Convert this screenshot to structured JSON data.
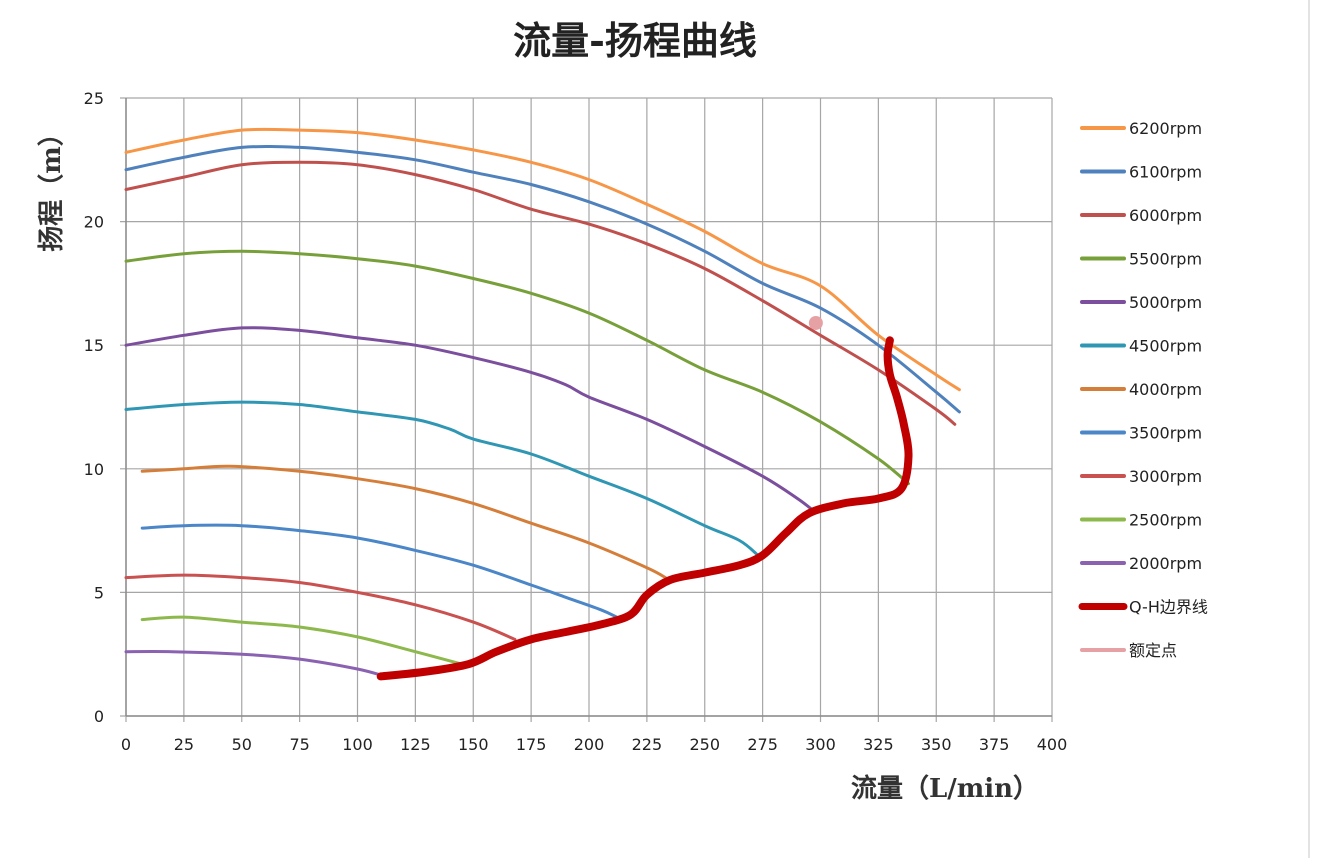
{
  "chart_data": {
    "type": "line",
    "title": "流量-扬程曲线",
    "xlabel": "流量（L/min）",
    "ylabel": "扬程（m）",
    "xlim": [
      0,
      400
    ],
    "ylim": [
      0,
      25
    ],
    "x_ticks": [
      "0",
      "25",
      "50",
      "75",
      "100",
      "125",
      "150",
      "175",
      "200",
      "225",
      "250",
      "275",
      "300",
      "325",
      "350",
      "375",
      "400"
    ],
    "y_ticks": [
      "0",
      "5",
      "10",
      "15",
      "20",
      "25"
    ],
    "grid": true,
    "legend_position": "right",
    "series": [
      {
        "name": "6200rpm",
        "color": "#F79646",
        "width": 3,
        "points": [
          [
            0,
            22.8
          ],
          [
            25,
            23.3
          ],
          [
            50,
            23.7
          ],
          [
            75,
            23.7
          ],
          [
            100,
            23.6
          ],
          [
            125,
            23.3
          ],
          [
            150,
            22.9
          ],
          [
            175,
            22.4
          ],
          [
            200,
            21.7
          ],
          [
            225,
            20.7
          ],
          [
            250,
            19.6
          ],
          [
            275,
            18.3
          ],
          [
            300,
            17.4
          ],
          [
            325,
            15.4
          ],
          [
            350,
            13.8
          ],
          [
            360,
            13.2
          ]
        ]
      },
      {
        "name": "6100rpm",
        "color": "#4F81BD",
        "width": 3,
        "points": [
          [
            0,
            22.1
          ],
          [
            25,
            22.6
          ],
          [
            50,
            23.0
          ],
          [
            75,
            23.0
          ],
          [
            100,
            22.8
          ],
          [
            125,
            22.5
          ],
          [
            150,
            22.0
          ],
          [
            175,
            21.5
          ],
          [
            200,
            20.8
          ],
          [
            225,
            19.9
          ],
          [
            250,
            18.8
          ],
          [
            275,
            17.5
          ],
          [
            300,
            16.5
          ],
          [
            325,
            15.0
          ],
          [
            350,
            13.1
          ],
          [
            360,
            12.3
          ]
        ]
      },
      {
        "name": "6000rpm",
        "color": "#C0504D",
        "width": 3,
        "points": [
          [
            0,
            21.3
          ],
          [
            25,
            21.8
          ],
          [
            50,
            22.3
          ],
          [
            75,
            22.4
          ],
          [
            100,
            22.3
          ],
          [
            125,
            21.9
          ],
          [
            150,
            21.3
          ],
          [
            175,
            20.5
          ],
          [
            200,
            19.9
          ],
          [
            225,
            19.1
          ],
          [
            250,
            18.1
          ],
          [
            275,
            16.8
          ],
          [
            300,
            15.4
          ],
          [
            325,
            14.0
          ],
          [
            350,
            12.4
          ],
          [
            358,
            11.8
          ]
        ]
      },
      {
        "name": "5500rpm",
        "color": "#77A03A",
        "width": 3,
        "points": [
          [
            0,
            18.4
          ],
          [
            25,
            18.7
          ],
          [
            50,
            18.8
          ],
          [
            75,
            18.7
          ],
          [
            100,
            18.5
          ],
          [
            125,
            18.2
          ],
          [
            150,
            17.7
          ],
          [
            175,
            17.1
          ],
          [
            200,
            16.3
          ],
          [
            225,
            15.2
          ],
          [
            250,
            14.0
          ],
          [
            275,
            13.1
          ],
          [
            300,
            11.9
          ],
          [
            325,
            10.4
          ],
          [
            338,
            9.4
          ]
        ]
      },
      {
        "name": "5000rpm",
        "color": "#7B4F9D",
        "width": 3,
        "points": [
          [
            0,
            15.0
          ],
          [
            25,
            15.4
          ],
          [
            50,
            15.7
          ],
          [
            75,
            15.6
          ],
          [
            100,
            15.3
          ],
          [
            125,
            15.0
          ],
          [
            150,
            14.5
          ],
          [
            175,
            13.9
          ],
          [
            190,
            13.4
          ],
          [
            200,
            12.9
          ],
          [
            225,
            12.0
          ],
          [
            250,
            10.9
          ],
          [
            275,
            9.7
          ],
          [
            290,
            8.8
          ],
          [
            297,
            8.3
          ]
        ]
      },
      {
        "name": "4500rpm",
        "color": "#2F97B4",
        "width": 3,
        "points": [
          [
            0,
            12.4
          ],
          [
            25,
            12.6
          ],
          [
            50,
            12.7
          ],
          [
            75,
            12.6
          ],
          [
            100,
            12.3
          ],
          [
            125,
            12.0
          ],
          [
            140,
            11.6
          ],
          [
            150,
            11.2
          ],
          [
            175,
            10.6
          ],
          [
            200,
            9.7
          ],
          [
            225,
            8.8
          ],
          [
            250,
            7.7
          ],
          [
            265,
            7.1
          ],
          [
            273,
            6.5
          ]
        ]
      },
      {
        "name": "4000rpm",
        "color": "#D57E3A",
        "width": 3,
        "points": [
          [
            7,
            9.9
          ],
          [
            25,
            10.0
          ],
          [
            45,
            10.1
          ],
          [
            75,
            9.9
          ],
          [
            100,
            9.6
          ],
          [
            125,
            9.2
          ],
          [
            150,
            8.6
          ],
          [
            175,
            7.8
          ],
          [
            200,
            7.0
          ],
          [
            225,
            6.0
          ],
          [
            233,
            5.6
          ]
        ]
      },
      {
        "name": "3500rpm",
        "color": "#4A86C8",
        "width": 3,
        "points": [
          [
            7,
            7.6
          ],
          [
            25,
            7.7
          ],
          [
            50,
            7.7
          ],
          [
            75,
            7.5
          ],
          [
            100,
            7.2
          ],
          [
            125,
            6.7
          ],
          [
            150,
            6.1
          ],
          [
            175,
            5.3
          ],
          [
            190,
            4.8
          ],
          [
            205,
            4.3
          ],
          [
            212,
            4.0
          ]
        ]
      },
      {
        "name": "3000rpm",
        "color": "#C95150",
        "width": 3,
        "points": [
          [
            0,
            5.6
          ],
          [
            25,
            5.7
          ],
          [
            50,
            5.6
          ],
          [
            75,
            5.4
          ],
          [
            100,
            5.0
          ],
          [
            125,
            4.5
          ],
          [
            150,
            3.8
          ],
          [
            168,
            3.1
          ]
        ]
      },
      {
        "name": "2500rpm",
        "color": "#8CB84C",
        "width": 3,
        "points": [
          [
            7,
            3.9
          ],
          [
            25,
            4.0
          ],
          [
            50,
            3.8
          ],
          [
            75,
            3.6
          ],
          [
            100,
            3.2
          ],
          [
            125,
            2.6
          ],
          [
            145,
            2.1
          ]
        ]
      },
      {
        "name": "2000rpm",
        "color": "#8A62B1",
        "width": 3,
        "points": [
          [
            0,
            2.6
          ],
          [
            20,
            2.6
          ],
          [
            50,
            2.5
          ],
          [
            75,
            2.3
          ],
          [
            100,
            1.9
          ],
          [
            112,
            1.6
          ]
        ]
      },
      {
        "name": "Q-H边界线",
        "color": "#C00000",
        "width": 8,
        "points": [
          [
            110,
            1.6
          ],
          [
            130,
            1.8
          ],
          [
            148,
            2.1
          ],
          [
            160,
            2.6
          ],
          [
            175,
            3.1
          ],
          [
            190,
            3.4
          ],
          [
            205,
            3.7
          ],
          [
            218,
            4.1
          ],
          [
            225,
            4.9
          ],
          [
            235,
            5.5
          ],
          [
            250,
            5.8
          ],
          [
            265,
            6.1
          ],
          [
            275,
            6.5
          ],
          [
            285,
            7.4
          ],
          [
            295,
            8.2
          ],
          [
            310,
            8.6
          ],
          [
            325,
            8.8
          ],
          [
            335,
            9.2
          ],
          [
            338,
            10.5
          ],
          [
            336,
            11.8
          ],
          [
            333,
            12.9
          ],
          [
            330,
            13.8
          ],
          [
            329,
            14.6
          ],
          [
            330,
            15.2
          ]
        ]
      },
      {
        "name": "额定点",
        "color": "#E6A1A5",
        "width": 3,
        "marker_only": true,
        "points": [
          [
            298,
            15.9
          ]
        ]
      }
    ]
  }
}
